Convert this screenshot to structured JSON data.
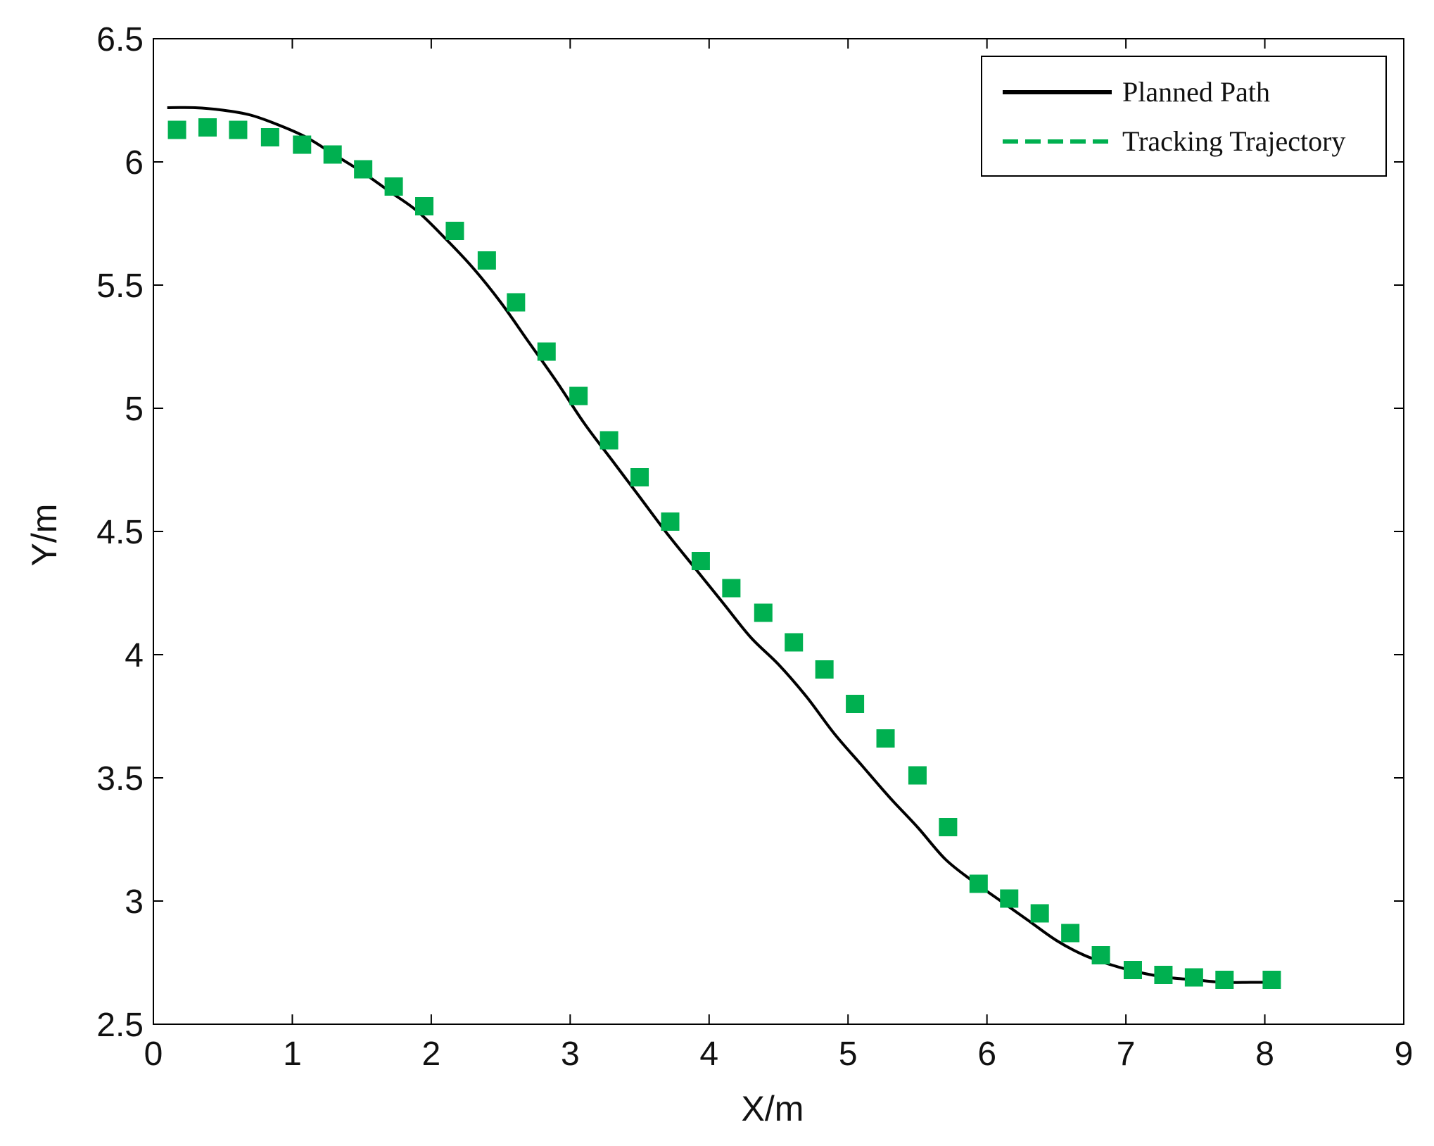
{
  "chart_data": {
    "type": "line",
    "xlabel": "X/m",
    "ylabel": "Y/m",
    "xlim": [
      0,
      9
    ],
    "ylim": [
      2.5,
      6.5
    ],
    "xticks": [
      "0",
      "1",
      "2",
      "3",
      "4",
      "5",
      "6",
      "7",
      "8",
      "9"
    ],
    "yticks": [
      "2.5",
      "3",
      "3.5",
      "4",
      "4.5",
      "5",
      "5.5",
      "6",
      "6.5"
    ],
    "grid": false,
    "legend_position": "top-right",
    "series": [
      {
        "name": "Planned Path",
        "style": "solid-line",
        "color": "#000000",
        "x": [
          0.1,
          0.3,
          0.5,
          0.7,
          0.9,
          1.1,
          1.3,
          1.5,
          1.7,
          1.9,
          2.1,
          2.3,
          2.5,
          2.7,
          2.9,
          3.1,
          3.3,
          3.5,
          3.7,
          3.9,
          4.1,
          4.3,
          4.5,
          4.7,
          4.9,
          5.1,
          5.3,
          5.5,
          5.7,
          5.9,
          6.1,
          6.3,
          6.5,
          6.7,
          6.9,
          7.1,
          7.3,
          7.5,
          7.7,
          7.9,
          8.05
        ],
        "y": [
          6.22,
          6.22,
          6.21,
          6.19,
          6.15,
          6.1,
          6.03,
          5.96,
          5.88,
          5.8,
          5.69,
          5.57,
          5.43,
          5.27,
          5.11,
          4.94,
          4.79,
          4.64,
          4.49,
          4.35,
          4.21,
          4.07,
          3.96,
          3.83,
          3.68,
          3.55,
          3.42,
          3.3,
          3.17,
          3.08,
          3.0,
          2.92,
          2.84,
          2.78,
          2.74,
          2.71,
          2.69,
          2.68,
          2.67,
          2.67,
          2.67
        ]
      },
      {
        "name": "Tracking Trajectory",
        "style": "square-markers",
        "color": "#00b050",
        "x": [
          0.17,
          0.39,
          0.61,
          0.84,
          1.07,
          1.29,
          1.51,
          1.73,
          1.95,
          2.17,
          2.4,
          2.61,
          2.83,
          3.06,
          3.28,
          3.5,
          3.72,
          3.94,
          4.16,
          4.39,
          4.61,
          4.83,
          5.05,
          5.27,
          5.5,
          5.72,
          5.94,
          6.16,
          6.38,
          6.6,
          6.82,
          7.05,
          7.27,
          7.49,
          7.71,
          8.05
        ],
        "y": [
          6.13,
          6.14,
          6.13,
          6.1,
          6.07,
          6.03,
          5.97,
          5.9,
          5.82,
          5.72,
          5.6,
          5.43,
          5.23,
          5.05,
          4.87,
          4.72,
          4.54,
          4.38,
          4.27,
          4.17,
          4.05,
          3.94,
          3.8,
          3.66,
          3.51,
          3.3,
          3.07,
          3.01,
          2.95,
          2.87,
          2.78,
          2.72,
          2.7,
          2.69,
          2.68,
          2.68
        ]
      }
    ]
  }
}
